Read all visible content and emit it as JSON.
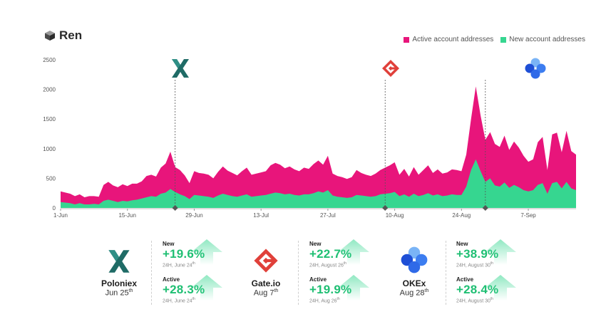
{
  "header": {
    "title": "Ren"
  },
  "legend": [
    {
      "label": "Active account addresses",
      "color": "#e8157b"
    },
    {
      "label": "New account addresses",
      "color": "#36d690"
    }
  ],
  "chart_data": {
    "type": "area",
    "title": "",
    "xlabel": "",
    "ylabel": "",
    "ylim": [
      0,
      2500
    ],
    "yticks": [
      0,
      500,
      1000,
      1500,
      2000,
      2500
    ],
    "xtick_labels": [
      "1-Jun",
      "15-Jun",
      "29-Jun",
      "13-Jul",
      "27-Jul",
      "10-Aug",
      "24-Aug",
      "7-Sep"
    ],
    "xtick_day_index": [
      0,
      14,
      28,
      42,
      56,
      70,
      84,
      98
    ],
    "x_start": "1-Jun",
    "grid": false,
    "legend_position": "top-right",
    "series": [
      {
        "name": "Active account addresses",
        "color": "#e8157b",
        "values": [
          280,
          260,
          240,
          200,
          230,
          180,
          200,
          200,
          190,
          390,
          440,
          380,
          350,
          400,
          370,
          410,
          410,
          450,
          540,
          560,
          530,
          680,
          750,
          950,
          690,
          640,
          550,
          420,
          620,
          590,
          580,
          560,
          500,
          610,
          700,
          630,
          590,
          550,
          620,
          680,
          560,
          580,
          600,
          620,
          720,
          760,
          730,
          670,
          700,
          650,
          620,
          680,
          660,
          740,
          800,
          730,
          880,
          580,
          540,
          520,
          490,
          520,
          640,
          590,
          560,
          540,
          580,
          640,
          680,
          720,
          770,
          560,
          660,
          530,
          690,
          560,
          640,
          720,
          590,
          650,
          580,
          600,
          650,
          640,
          620,
          900,
          1500,
          2050,
          1560,
          1150,
          1280,
          1080,
          1030,
          1220,
          980,
          1120,
          1020,
          880,
          780,
          820,
          1110,
          1200,
          640,
          1240,
          1270,
          940,
          1300,
          960,
          900
        ]
      },
      {
        "name": "New account addresses",
        "color": "#36d690",
        "values": [
          100,
          90,
          80,
          60,
          80,
          60,
          60,
          70,
          60,
          120,
          140,
          120,
          100,
          120,
          110,
          130,
          140,
          160,
          180,
          200,
          190,
          240,
          260,
          320,
          270,
          230,
          200,
          150,
          220,
          210,
          200,
          190,
          170,
          210,
          240,
          220,
          200,
          190,
          210,
          230,
          190,
          200,
          210,
          220,
          240,
          260,
          250,
          230,
          240,
          220,
          210,
          230,
          230,
          250,
          280,
          260,
          300,
          210,
          190,
          180,
          170,
          180,
          220,
          210,
          200,
          190,
          200,
          230,
          240,
          250,
          270,
          200,
          230,
          190,
          240,
          200,
          220,
          250,
          210,
          230,
          200,
          210,
          230,
          220,
          220,
          360,
          640,
          820,
          620,
          440,
          500,
          380,
          360,
          430,
          340,
          390,
          350,
          300,
          280,
          300,
          390,
          420,
          240,
          420,
          440,
          330,
          440,
          330,
          300
        ]
      }
    ],
    "events": [
      {
        "exchange": "Poloniex",
        "day_index": 24
      },
      {
        "exchange": "Gate.io",
        "day_index": 68
      },
      {
        "exchange": "OKEx",
        "day_index": 89
      }
    ]
  },
  "exchanges": [
    {
      "name": "Poloniex",
      "date": "Jun 25",
      "date_sup": "th",
      "new_label": "New",
      "new_value": "+19.6%",
      "new_sub": "24H, June 24",
      "new_sub_sup": "th",
      "active_label": "Active",
      "active_value": "+28.3%",
      "active_sub": "24H, June 24",
      "active_sub_sup": "th"
    },
    {
      "name": "Gate.io",
      "date": "Aug 7",
      "date_sup": "th",
      "new_label": "New",
      "new_value": "+22.7%",
      "new_sub": "24H, August 26",
      "new_sub_sup": "th",
      "active_label": "Active",
      "active_value": "+19.9%",
      "active_sub": "24H, Aug 26",
      "active_sub_sup": "th"
    },
    {
      "name": "OKEx",
      "date": "Aug 28",
      "date_sup": "th",
      "new_label": "New",
      "new_value": "+38.9%",
      "new_sub": "24H, August 30",
      "new_sub_sup": "th",
      "active_label": "Active",
      "active_value": "+28.4%",
      "active_sub": "24H, August 30",
      "active_sub_sup": "th"
    }
  ],
  "icons": {
    "brand": "ren-cube-icon",
    "poloniex": "poloniex-x-icon",
    "gateio": "gateio-g-icon",
    "okex": "okex-circles-icon",
    "arrow": "up-arrow-icon"
  }
}
